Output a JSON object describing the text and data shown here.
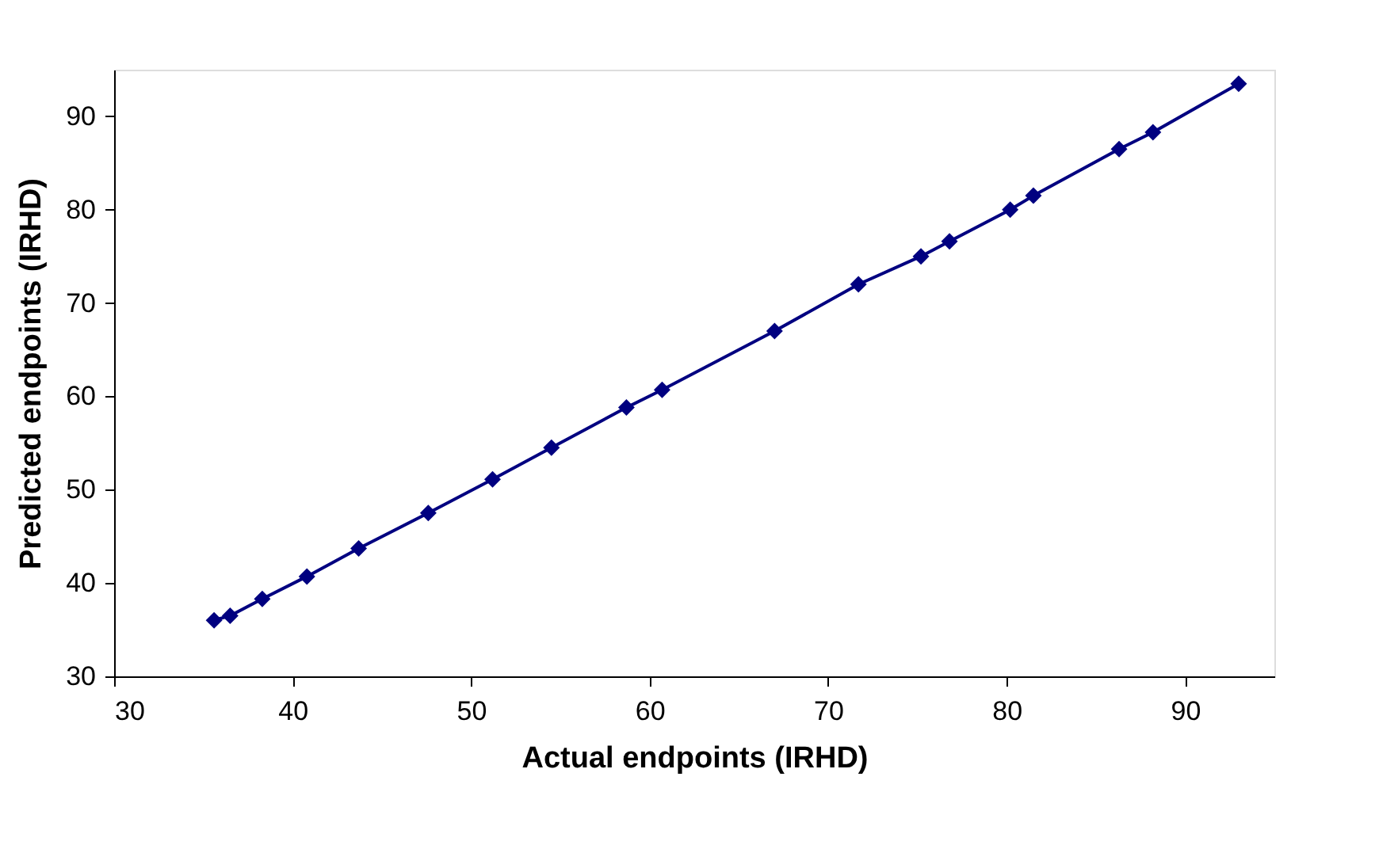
{
  "chart_data": {
    "type": "line",
    "xlabel": "Actual endpoints (IRHD)",
    "ylabel": "Predicted endpoints (IRHD)",
    "xlim": [
      30,
      95
    ],
    "xticks": [
      30,
      40,
      50,
      60,
      70,
      80,
      90
    ],
    "ylim": [
      30,
      95
    ],
    "yticks": [
      30,
      40,
      50,
      60,
      70,
      80,
      90
    ],
    "grid": false,
    "marker": "diamond",
    "line_style": "solid",
    "series": [
      {
        "color": "#000080",
        "x": [
          35.6,
          36.5,
          38.3,
          40.8,
          43.7,
          47.6,
          51.2,
          54.5,
          58.7,
          60.7,
          67.0,
          71.7,
          75.2,
          76.8,
          80.2,
          81.5,
          86.3,
          88.2,
          93.0
        ],
        "values": [
          36.0,
          36.5,
          38.3,
          40.7,
          43.7,
          47.5,
          51.1,
          54.5,
          58.8,
          60.7,
          67.0,
          72.0,
          75.0,
          76.6,
          80.0,
          81.5,
          86.5,
          88.3,
          93.5
        ]
      }
    ]
  }
}
